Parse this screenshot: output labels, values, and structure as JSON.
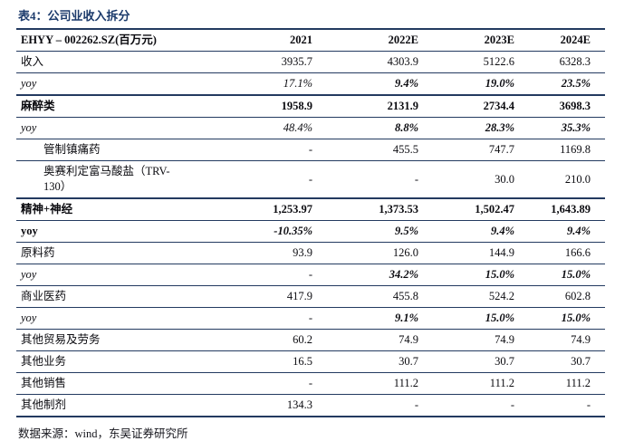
{
  "page": {
    "title": "表4：公司业收入拆分",
    "source_note": "数据来源：wind，东吴证券研究所"
  },
  "colors": {
    "title_navy": "#1b3a6b",
    "rule_navy": "#233a60",
    "text": "#0b0b10",
    "background": "#ffffff"
  },
  "table": {
    "columns": {
      "label": "EHYY – 002262.SZ(百万元)",
      "y2021": "2021",
      "y2022": "2022E",
      "y2023": "2023E",
      "y2024": "2024E"
    },
    "rows": [
      {
        "label": "收入",
        "values": [
          "3935.7",
          "4303.9",
          "5122.6",
          "6328.3"
        ]
      },
      {
        "label": "yoy",
        "values": [
          "17.1%",
          "9.4%",
          "19.0%",
          "23.5%"
        ]
      },
      {
        "label": "麻醉类",
        "values": [
          "1958.9",
          "2131.9",
          "2734.4",
          "3698.3"
        ]
      },
      {
        "label": "yoy",
        "values": [
          "48.4%",
          "8.8%",
          "28.3%",
          "35.3%"
        ]
      },
      {
        "label": "管制镇痛药",
        "values": [
          "-",
          "455.5",
          "747.7",
          "1169.8"
        ]
      },
      {
        "label": "奥赛利定富马酸盐（TRV-130）",
        "values": [
          "-",
          "-",
          "30.0",
          "210.0"
        ]
      },
      {
        "label": "精神+神经",
        "values": [
          "1,253.97",
          "1,373.53",
          "1,502.47",
          "1,643.89"
        ]
      },
      {
        "label": "yoy",
        "values": [
          "-10.35%",
          "9.5%",
          "9.4%",
          "9.4%"
        ]
      },
      {
        "label": "原料药",
        "values": [
          "93.9",
          "126.0",
          "144.9",
          "166.6"
        ]
      },
      {
        "label": "yoy",
        "values": [
          "-",
          "34.2%",
          "15.0%",
          "15.0%"
        ]
      },
      {
        "label": "商业医药",
        "values": [
          "417.9",
          "455.8",
          "524.2",
          "602.8"
        ]
      },
      {
        "label": "yoy",
        "values": [
          "-",
          "9.1%",
          "15.0%",
          "15.0%"
        ]
      },
      {
        "label": "其他贸易及劳务",
        "values": [
          "60.2",
          "74.9",
          "74.9",
          "74.9"
        ]
      },
      {
        "label": "其他业务",
        "values": [
          "16.5",
          "30.7",
          "30.7",
          "30.7"
        ]
      },
      {
        "label": "其他销售",
        "values": [
          "-",
          "111.2",
          "111.2",
          "111.2"
        ]
      },
      {
        "label": "其他制剂",
        "values": [
          "134.3",
          "-",
          "-",
          "-"
        ]
      }
    ]
  }
}
